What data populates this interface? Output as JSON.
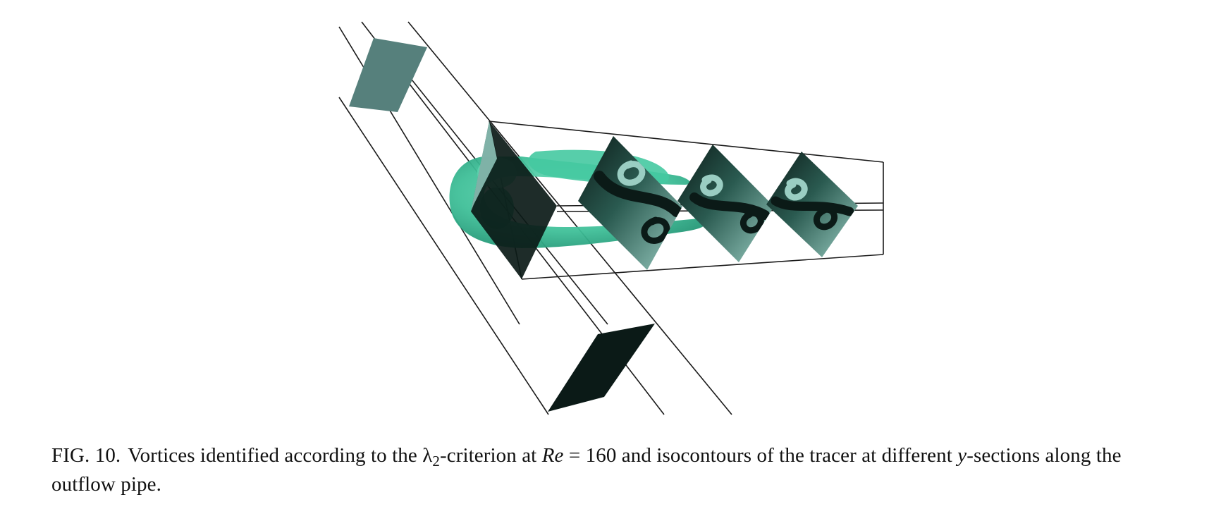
{
  "caption": {
    "label": "FIG. 10.",
    "part1": "Vortices identified according to the ",
    "lambda_symbol": "λ",
    "lambda_subscript": "2",
    "part2": "-criterion at ",
    "re_symbol": "Re",
    "part3": " = 160 and isocontours of the tracer at different ",
    "y_symbol": "y",
    "part4": "-sections along the outflow pipe."
  },
  "colors": {
    "vortex": "#3fbf98",
    "slice_dark": "#0b1a17",
    "slice_light": "#8cc1b6",
    "inlet_cap": "#56807c",
    "pipe_line": "#1a1a1a"
  }
}
